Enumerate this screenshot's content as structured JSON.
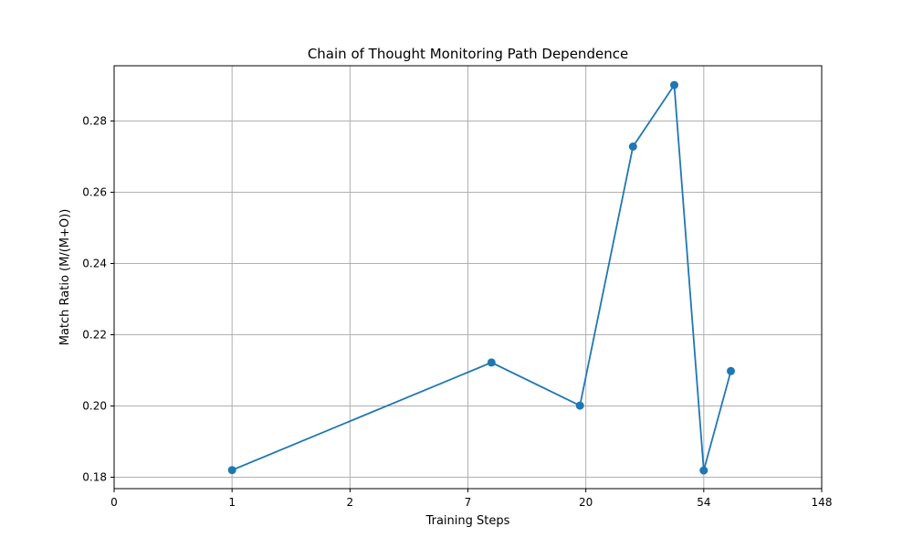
{
  "chart_data": {
    "type": "line",
    "title": "Chain of Thought Monitoring Path Dependence",
    "xlabel": "Training Steps",
    "ylabel": "Match Ratio (M/(M+O))",
    "x_ticks": [
      "0",
      "1",
      "2",
      "7",
      "20",
      "54",
      "148"
    ],
    "y_ticks": [
      "0.18",
      "0.20",
      "0.22",
      "0.24",
      "0.26",
      "0.28"
    ],
    "y_tick_values": [
      0.18,
      0.2,
      0.22,
      0.24,
      0.26,
      0.28
    ],
    "ylim": [
      0.1768,
      0.2955
    ],
    "xlim_tick_index": [
      0,
      6
    ],
    "grid": true,
    "series": [
      {
        "color": "#1f77b4",
        "marker": "circle",
        "x": [
          1,
          7.5,
          19.5,
          27,
          42,
          52,
          60
        ],
        "x_tick_position": [
          1,
          3.2,
          3.95,
          4.4,
          4.75,
          5.0,
          5.23
        ],
        "y": [
          0.182,
          0.2122,
          0.2001,
          0.2728,
          0.2901,
          0.1819,
          0.2098
        ]
      }
    ]
  }
}
